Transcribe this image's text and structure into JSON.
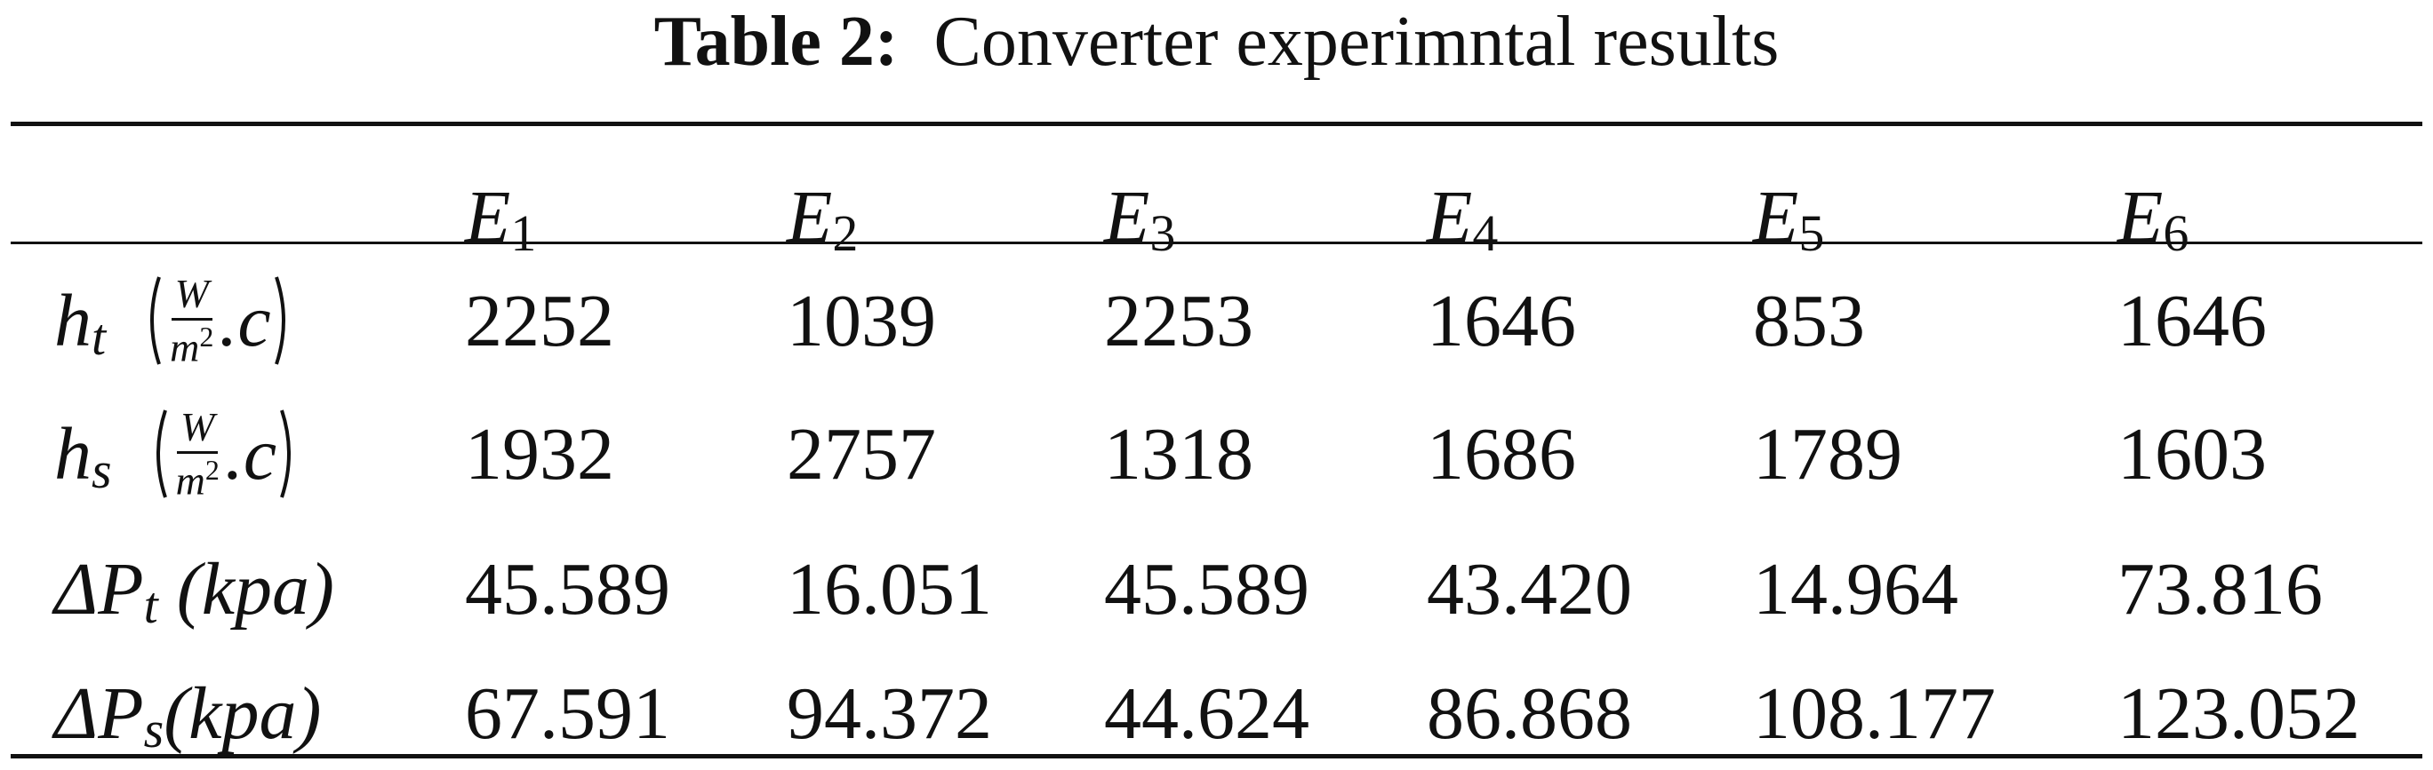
{
  "caption": {
    "label": "Table 2:",
    "title": "Converter experimntal results"
  },
  "table": {
    "header": [
      {
        "symbol": "E",
        "sub": "1"
      },
      {
        "symbol": "E",
        "sub": "2"
      },
      {
        "symbol": "E",
        "sub": "3"
      },
      {
        "symbol": "E",
        "sub": "4"
      },
      {
        "symbol": "E",
        "sub": "5"
      },
      {
        "symbol": "E",
        "sub": "6"
      }
    ],
    "rows": [
      {
        "label": {
          "symbol": "h",
          "sub": "t",
          "unit": {
            "num": "W",
            "den": "m",
            "den_sup": "2",
            "tail": ".c"
          }
        },
        "values": [
          "2252",
          "1039",
          "2253",
          "1646",
          "853",
          "1646"
        ]
      },
      {
        "label": {
          "symbol": "h",
          "sub": "s",
          "unit": {
            "num": "W",
            "den": "m",
            "den_sup": "2",
            "tail": ".c"
          }
        },
        "values": [
          "1932",
          "2757",
          "1318",
          "1686",
          "1789",
          "1603"
        ]
      },
      {
        "label": {
          "symbol": "ΔP",
          "sub": "t",
          "unit_text": " (kpa)"
        },
        "values": [
          "45.589",
          "16.051",
          "45.589",
          "43.420",
          "14.964",
          "73.816"
        ]
      },
      {
        "label": {
          "symbol": "ΔP",
          "sub": "s",
          "unit_text": "(kpa)"
        },
        "values": [
          "67.591",
          "94.372",
          "44.624",
          "86.868",
          "108.177",
          "123.052"
        ]
      }
    ]
  }
}
